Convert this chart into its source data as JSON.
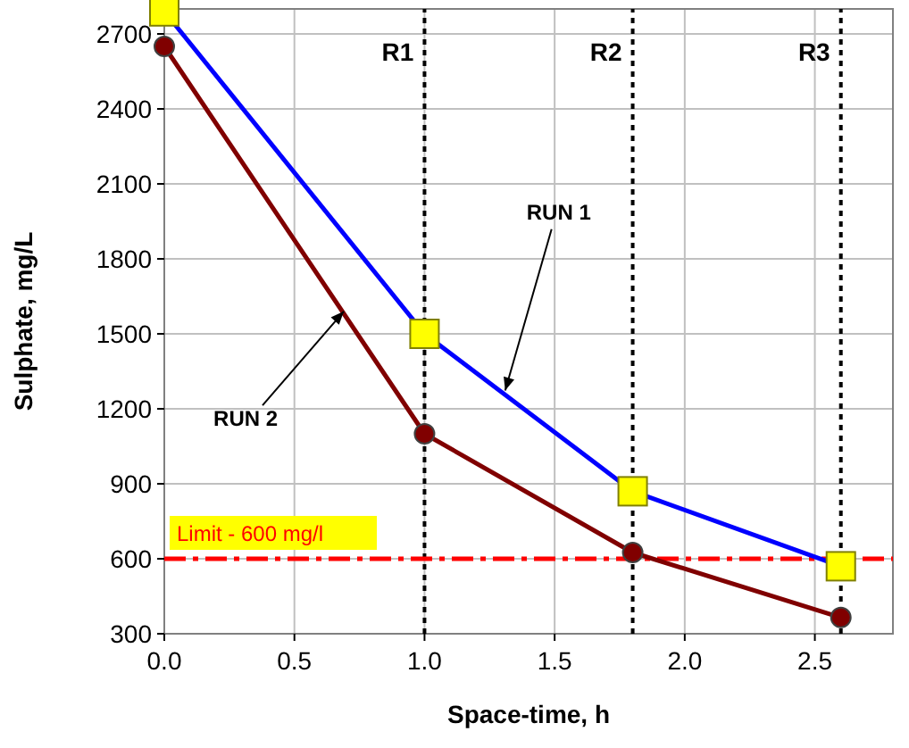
{
  "chart_data": {
    "type": "line",
    "xlabel": "Space-time, h",
    "ylabel": "Sulphate, mg/L",
    "xlim": [
      0,
      2.8
    ],
    "ylim": [
      300,
      2800
    ],
    "xticks": [
      {
        "value": 0,
        "label": "0.0"
      },
      {
        "value": 0.5,
        "label": "0.5"
      },
      {
        "value": 1,
        "label": "1.0"
      },
      {
        "value": 1.5,
        "label": "1.5"
      },
      {
        "value": 2,
        "label": "2.0"
      },
      {
        "value": 2.5,
        "label": "2.5"
      }
    ],
    "yticks": [
      300,
      600,
      900,
      1200,
      1500,
      1800,
      2100,
      2400,
      2700
    ],
    "grid": true,
    "line_style": "solid",
    "series": [
      {
        "color": "#0000ff",
        "marker": "square",
        "x": [
          0,
          1,
          1.8,
          2.6
        ],
        "values": [
          2790,
          1500,
          870,
          570
        ]
      },
      {
        "color": "#800000",
        "marker": "circle",
        "x": [
          0,
          1,
          1.8,
          2.6
        ],
        "values": [
          2650,
          1100,
          625,
          365
        ]
      }
    ],
    "ref_lines": [
      {
        "axis": "x",
        "value": 1,
        "label": "R1",
        "color": "#000000",
        "line_style": "dotted"
      },
      {
        "axis": "x",
        "value": 1.8,
        "label": "R2",
        "color": "#000000",
        "line_style": "dotted"
      },
      {
        "axis": "x",
        "value": 2.6,
        "label": "R3",
        "color": "#000000",
        "line_style": "dotted"
      },
      {
        "axis": "y",
        "value": 600,
        "label": "Limit - 600 mg/l",
        "color": "#ff0000",
        "line_style": "dashed"
      }
    ],
    "annotations": [
      {
        "text": "RUN 1",
        "x": 1.31,
        "y": 1273
      },
      {
        "text": "RUN 2",
        "x": 0.69,
        "y": 1590
      }
    ]
  }
}
